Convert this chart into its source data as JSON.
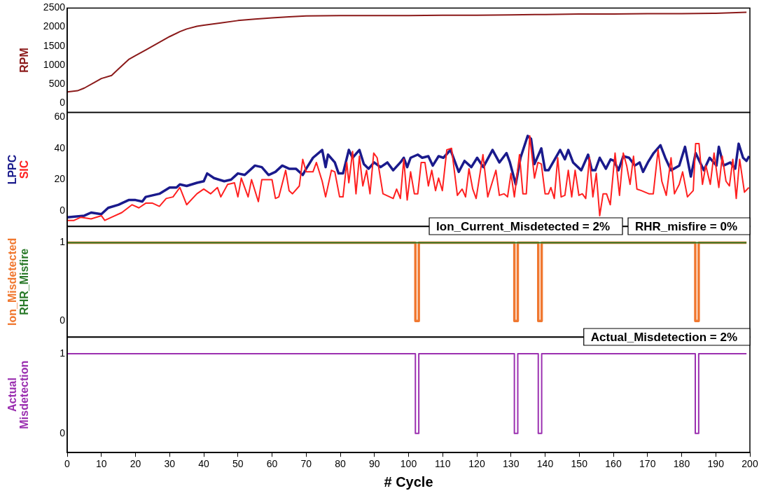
{
  "chart_data": [
    {
      "type": "line",
      "xlim": [
        0,
        200
      ],
      "ylim": [
        -240,
        2500
      ],
      "yticks": [
        0,
        500,
        1000,
        1500,
        2000,
        2500
      ],
      "tick_labels": "y",
      "marker": "none",
      "legend": false,
      "grid": false,
      "series": [
        {
          "name": "RPM",
          "color": "#8b1a1a",
          "x": [
            0,
            3,
            5,
            8,
            10,
            13,
            15,
            18,
            20,
            23,
            25,
            28,
            30,
            33,
            35,
            38,
            40,
            45,
            50,
            55,
            60,
            65,
            70,
            80,
            90,
            100,
            110,
            120,
            130,
            140,
            150,
            160,
            170,
            180,
            190,
            199
          ],
          "values": [
            300,
            330,
            400,
            550,
            650,
            730,
            900,
            1150,
            1250,
            1400,
            1500,
            1650,
            1750,
            1880,
            1950,
            2020,
            2050,
            2110,
            2170,
            2210,
            2240,
            2270,
            2290,
            2300,
            2300,
            2300,
            2310,
            2310,
            2320,
            2330,
            2340,
            2340,
            2350,
            2350,
            2360,
            2390
          ]
        }
      ]
    },
    {
      "type": "line",
      "xlim": [
        0,
        200
      ],
      "ylim": [
        -10,
        63
      ],
      "yticks": [
        0,
        20,
        40,
        60
      ],
      "tick_labels": "y",
      "marker": "none",
      "legend": false,
      "grid": false,
      "series": [
        {
          "name": "LPPC",
          "color": "#1a1a8c",
          "x": [
            0,
            5,
            7,
            10,
            12,
            15,
            18,
            20,
            22,
            23,
            25,
            27,
            30,
            32,
            33,
            35,
            38,
            40,
            41,
            43,
            46,
            48,
            50,
            52,
            55,
            57,
            59,
            61,
            63,
            65,
            67,
            69,
            70,
            72,
            74.7,
            75.7,
            76.4,
            78.4,
            79.5,
            80.8,
            82.5,
            83.6,
            85.6,
            86.9,
            88.3,
            89.9,
            91.8,
            93.8,
            95.5,
            97.6,
            98.6,
            99.6,
            100.6,
            102.7,
            104,
            105.8,
            107.1,
            108.8,
            110.2,
            112.3,
            114.7,
            116.4,
            118.4,
            120.1,
            121.9,
            124.6,
            126.6,
            128.7,
            129.7,
            131.4,
            132.8,
            134.9,
            135.9,
            136.9,
            138.9,
            140,
            141,
            144.4,
            145.8,
            146.8,
            148.2,
            150.6,
            152.6,
            153.7,
            154.7,
            156,
            157.8,
            159.2,
            160.2,
            161.5,
            162.9,
            164.6,
            166.3,
            167.7,
            168.7,
            170.1,
            171.8,
            173.8,
            175.2,
            176.9,
            179.3,
            181,
            182.7,
            184.1,
            186.5,
            188.2,
            190.2,
            190.9,
            192.3,
            194.3,
            195.7,
            196.7,
            198,
            199,
            199.8
          ],
          "values": [
            -4,
            -3,
            -1,
            -2,
            2,
            4,
            7,
            7,
            6,
            9,
            10,
            11,
            15,
            15,
            17,
            16,
            18,
            19,
            24,
            21,
            19,
            20,
            24,
            23,
            29,
            28,
            23,
            25,
            29,
            27,
            27,
            23,
            27,
            34,
            39,
            28,
            36,
            31,
            24,
            24,
            39,
            34,
            39,
            30,
            27,
            31,
            28,
            31,
            26,
            31,
            34,
            28,
            34,
            36,
            34,
            35,
            29,
            35,
            34,
            39,
            25,
            32,
            28,
            34,
            28,
            39,
            31,
            37,
            31,
            17,
            34,
            48,
            46,
            30,
            40,
            26,
            26,
            39,
            33,
            39,
            31,
            26,
            36,
            26,
            26,
            34,
            27,
            33,
            32,
            26,
            35,
            34,
            29,
            31,
            25,
            31,
            37,
            42,
            34,
            26,
            29,
            41,
            22,
            37,
            26,
            34,
            29,
            41,
            29,
            31,
            27,
            43,
            34,
            32,
            35
          ]
        },
        {
          "name": "SIC",
          "color": "#ff2020",
          "x": [
            0,
            2,
            4,
            7,
            10,
            11,
            13,
            16,
            19,
            21,
            23,
            25,
            27,
            29,
            31,
            33,
            35,
            38,
            40,
            42,
            44,
            45,
            47,
            49,
            50,
            51,
            53,
            54,
            56,
            57,
            60,
            61,
            62,
            64,
            65,
            66,
            68,
            69,
            70,
            72,
            73,
            74.7,
            75.7,
            77.4,
            78.4,
            79.8,
            80.8,
            81.9,
            82.5,
            83.6,
            84.6,
            85.6,
            86.6,
            87.7,
            88.7,
            89.8,
            90.8,
            92.5,
            94.5,
            95.5,
            96.5,
            97.6,
            98.6,
            99.6,
            100.6,
            101.7,
            102.7,
            103.7,
            104.8,
            105.8,
            106.8,
            107.9,
            108.8,
            109.9,
            111.2,
            112.6,
            114.3,
            115.7,
            116.7,
            117.7,
            118.8,
            119.8,
            121.8,
            123.2,
            125.6,
            126.6,
            128,
            129,
            130,
            131,
            132.5,
            133.5,
            134.5,
            135.5,
            136.9,
            137.9,
            138.9,
            140,
            141,
            141.7,
            142.7,
            143.7,
            144.7,
            145.8,
            146.8,
            147.8,
            148.8,
            149.9,
            150.9,
            151.9,
            153,
            154,
            155,
            156,
            157,
            158,
            159.1,
            160.5,
            161.8,
            162.9,
            163.9,
            164.9,
            165.9,
            166.9,
            168.2,
            170.4,
            171.7,
            173.1,
            174.2,
            175.5,
            176.9,
            177.9,
            179.3,
            180.3,
            181.7,
            183.4,
            184.1,
            185.1,
            186.1,
            187.1,
            188.4,
            189.5,
            190.9,
            191.9,
            193,
            194,
            195,
            196,
            197,
            198.4,
            199.7
          ],
          "values": [
            -6,
            -6,
            -4,
            -5,
            -3,
            -6,
            -4,
            -1,
            4,
            2,
            5,
            5,
            3,
            8,
            9,
            15,
            4,
            11,
            14,
            11,
            15,
            9,
            17,
            18,
            9,
            21,
            9,
            20,
            6,
            20,
            20,
            8,
            9,
            26,
            13,
            11,
            16,
            33,
            25,
            25,
            31,
            19,
            9,
            26,
            25,
            9,
            9,
            31,
            18,
            38,
            11,
            35,
            16,
            26,
            11,
            37,
            34,
            11,
            9,
            8,
            14,
            8,
            33,
            7,
            25,
            11,
            11,
            31,
            31,
            16,
            26,
            13,
            21,
            13,
            39,
            40,
            10,
            14,
            9,
            27,
            14,
            8,
            36,
            9,
            26,
            10,
            11,
            9,
            24,
            9,
            36,
            11,
            11,
            48,
            21,
            31,
            30,
            11,
            11,
            15,
            8,
            34,
            9,
            10,
            26,
            9,
            26,
            10,
            11,
            8,
            34,
            9,
            24,
            -3,
            11,
            11,
            4,
            37,
            10,
            37,
            29,
            17,
            35,
            14,
            13,
            11,
            11,
            39,
            19,
            10,
            34,
            11,
            17,
            25,
            9,
            13,
            43,
            43,
            17,
            29,
            17,
            37,
            15,
            35,
            19,
            16,
            33,
            8,
            33,
            12,
            15
          ]
        }
      ]
    },
    {
      "type": "line",
      "xlim": [
        0,
        200
      ],
      "ylim": [
        -0.21,
        1.21
      ],
      "yticks": [
        0,
        1
      ],
      "tick_labels": "y",
      "marker": "none",
      "legend": false,
      "grid": false,
      "annotations": [
        "Ion_Current_Misdetected = 2%",
        "RHR_misfire = 0%"
      ],
      "series": [
        {
          "name": "Ion_Misdetected",
          "type": "step",
          "color": "#f07830",
          "x": [
            0,
            102,
            103,
            131,
            132,
            138,
            139,
            184,
            185,
            199
          ],
          "values": [
            1,
            0,
            1,
            0,
            1,
            0,
            1,
            0,
            1,
            1
          ]
        },
        {
          "name": "RHR_Misfire",
          "color": "#2a7a2a",
          "x": [
            0,
            199
          ],
          "values": [
            1,
            1
          ]
        }
      ]
    },
    {
      "type": "step",
      "xlim": [
        0,
        200
      ],
      "xticks": [
        0,
        10,
        20,
        30,
        40,
        50,
        60,
        70,
        80,
        90,
        100,
        110,
        120,
        130,
        140,
        150,
        160,
        170,
        180,
        190,
        200
      ],
      "ylim": [
        -0.24,
        1.21
      ],
      "yticks": [
        0,
        1
      ],
      "xlabel": "# Cycle",
      "marker": "none",
      "legend": false,
      "grid": false,
      "annotations": [
        "Actual_Misdetection = 2%"
      ],
      "series": [
        {
          "name": "Actual Misdetection",
          "color": "#9b30b0",
          "x": [
            0,
            102,
            103,
            131,
            132,
            138,
            139,
            184,
            185,
            199
          ],
          "values": [
            1,
            0,
            1,
            0,
            1,
            0,
            1,
            0,
            1,
            1
          ]
        }
      ]
    }
  ]
}
